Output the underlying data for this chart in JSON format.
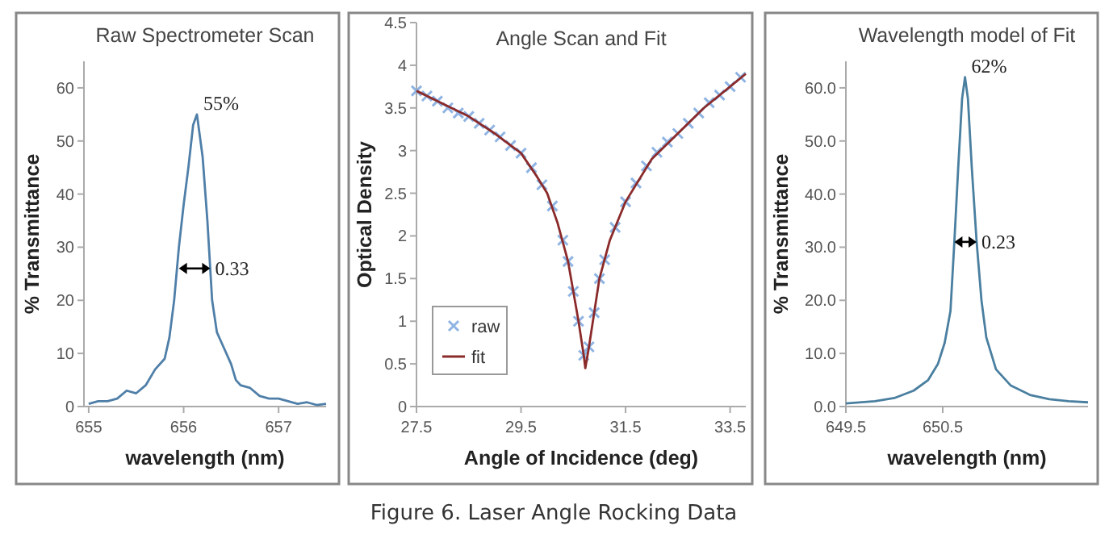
{
  "chart_data": [
    {
      "type": "line",
      "title": "Raw Spectrometer Scan",
      "xlabel": "wavelength (nm)",
      "ylabel": "% Transmittance",
      "xlim": [
        654.95,
        657.5
      ],
      "xticks": [
        655,
        656,
        657
      ],
      "ylim": [
        0,
        65
      ],
      "yticks": [
        0,
        10,
        20,
        30,
        40,
        50,
        60
      ],
      "grid": false,
      "legend": false,
      "series": [
        {
          "color": "#4f7fa8",
          "x": [
            655.0,
            655.1,
            655.2,
            655.3,
            655.4,
            655.5,
            655.6,
            655.7,
            655.8,
            655.85,
            655.9,
            655.95,
            656.0,
            656.05,
            656.1,
            656.14,
            656.2,
            656.25,
            656.3,
            656.35,
            656.4,
            656.5,
            656.55,
            656.6,
            656.7,
            656.8,
            656.9,
            657.0,
            657.1,
            657.2,
            657.3,
            657.4,
            657.5
          ],
          "values": [
            0.5,
            1,
            1,
            1.5,
            3,
            2.5,
            4,
            7,
            9,
            13,
            20,
            30,
            38,
            45,
            53,
            55,
            47,
            35,
            20,
            14,
            12,
            8,
            5,
            4,
            3.5,
            2,
            1.5,
            1.5,
            1,
            0.5,
            0.8,
            0.3,
            0.5
          ]
        }
      ],
      "annotations": [
        {
          "text": "55%",
          "x": 656.14,
          "y": 55
        },
        {
          "text": "0.33",
          "x": 656.28,
          "y": 26
        }
      ]
    },
    {
      "type": "line",
      "title": "Angle Scan and Fit",
      "xlabel": "Angle of Incidence (deg)",
      "ylabel": "Optical Density",
      "xlim": [
        27.5,
        33.8
      ],
      "xticks": [
        27.5,
        29.5,
        31.5,
        33.5
      ],
      "ylim": [
        0,
        4.5
      ],
      "yticks": [
        0,
        0.5,
        1,
        1.5,
        2,
        2.5,
        3,
        3.5,
        4,
        4.5
      ],
      "grid": false,
      "legend": "bottom left",
      "series": [
        {
          "name": "raw",
          "type": "scatter",
          "marker": "cross",
          "color": "#8fb4e3",
          "x": [
            27.5,
            27.7,
            27.9,
            28.1,
            28.3,
            28.5,
            28.7,
            28.9,
            29.1,
            29.3,
            29.5,
            29.7,
            29.9,
            30.1,
            30.3,
            30.4,
            30.5,
            30.6,
            30.7,
            30.8,
            30.9,
            31.0,
            31.1,
            31.3,
            31.5,
            31.7,
            31.9,
            32.1,
            32.3,
            32.5,
            32.7,
            32.9,
            33.1,
            33.3,
            33.5,
            33.7
          ],
          "values": [
            3.7,
            3.64,
            3.58,
            3.5,
            3.44,
            3.4,
            3.32,
            3.24,
            3.16,
            3.06,
            2.97,
            2.8,
            2.6,
            2.35,
            1.95,
            1.7,
            1.35,
            1.0,
            0.6,
            0.7,
            1.1,
            1.5,
            1.72,
            2.1,
            2.4,
            2.62,
            2.82,
            2.98,
            3.1,
            3.2,
            3.32,
            3.44,
            3.56,
            3.65,
            3.75,
            3.86
          ]
        },
        {
          "name": "fit",
          "color": "#8b2a2a",
          "x": [
            27.5,
            28,
            28.5,
            29,
            29.5,
            29.8,
            30,
            30.2,
            30.4,
            30.5,
            30.6,
            30.7,
            30.73,
            30.8,
            30.9,
            31,
            31.2,
            31.5,
            32,
            32.5,
            33,
            33.5,
            33.8
          ],
          "values": [
            3.7,
            3.55,
            3.4,
            3.2,
            2.97,
            2.7,
            2.5,
            2.15,
            1.7,
            1.35,
            1.0,
            0.6,
            0.45,
            0.7,
            1.1,
            1.5,
            1.95,
            2.4,
            2.9,
            3.2,
            3.5,
            3.75,
            3.9
          ]
        }
      ],
      "annotations": [
        "Figure 6. Laser Angle Rocking Data"
      ]
    },
    {
      "type": "line",
      "title": "Wavelength model of Fit",
      "xlabel": "wavelength (nm)",
      "ylabel": "% Transmittance",
      "xlim": [
        649.5,
        652
      ],
      "xticks": [
        649.5,
        650.5
      ],
      "ylim": [
        0,
        65
      ],
      "yticks": [
        {
          "value": 0,
          "label": "0.0"
        },
        {
          "value": 10,
          "label": "10.0"
        },
        {
          "value": 20,
          "label": "20.0"
        },
        {
          "value": 30,
          "label": "30.0"
        },
        {
          "value": 40,
          "label": "40.0"
        },
        {
          "value": 50,
          "label": "50.0"
        },
        {
          "value": 60,
          "label": "60.0"
        }
      ],
      "grid": false,
      "legend": false,
      "series": [
        {
          "color": "#4a7fa0",
          "x": [
            649.5,
            649.8,
            650.0,
            650.2,
            650.35,
            650.45,
            650.52,
            650.58,
            650.62,
            650.66,
            650.7,
            650.73,
            650.76,
            650.8,
            650.85,
            650.9,
            650.95,
            651.05,
            651.2,
            651.4,
            651.6,
            651.8,
            652
          ],
          "values": [
            0.6,
            1,
            1.6,
            3,
            5,
            8,
            12,
            18,
            31,
            45,
            58,
            62,
            58,
            45,
            31,
            20,
            13,
            7,
            4,
            2.2,
            1.4,
            1,
            0.8
          ]
        }
      ],
      "annotations": [
        {
          "text": "62%",
          "x": 650.73,
          "y": 62
        },
        {
          "text": "0.23",
          "x": 650.85,
          "y": 31
        }
      ]
    }
  ]
}
